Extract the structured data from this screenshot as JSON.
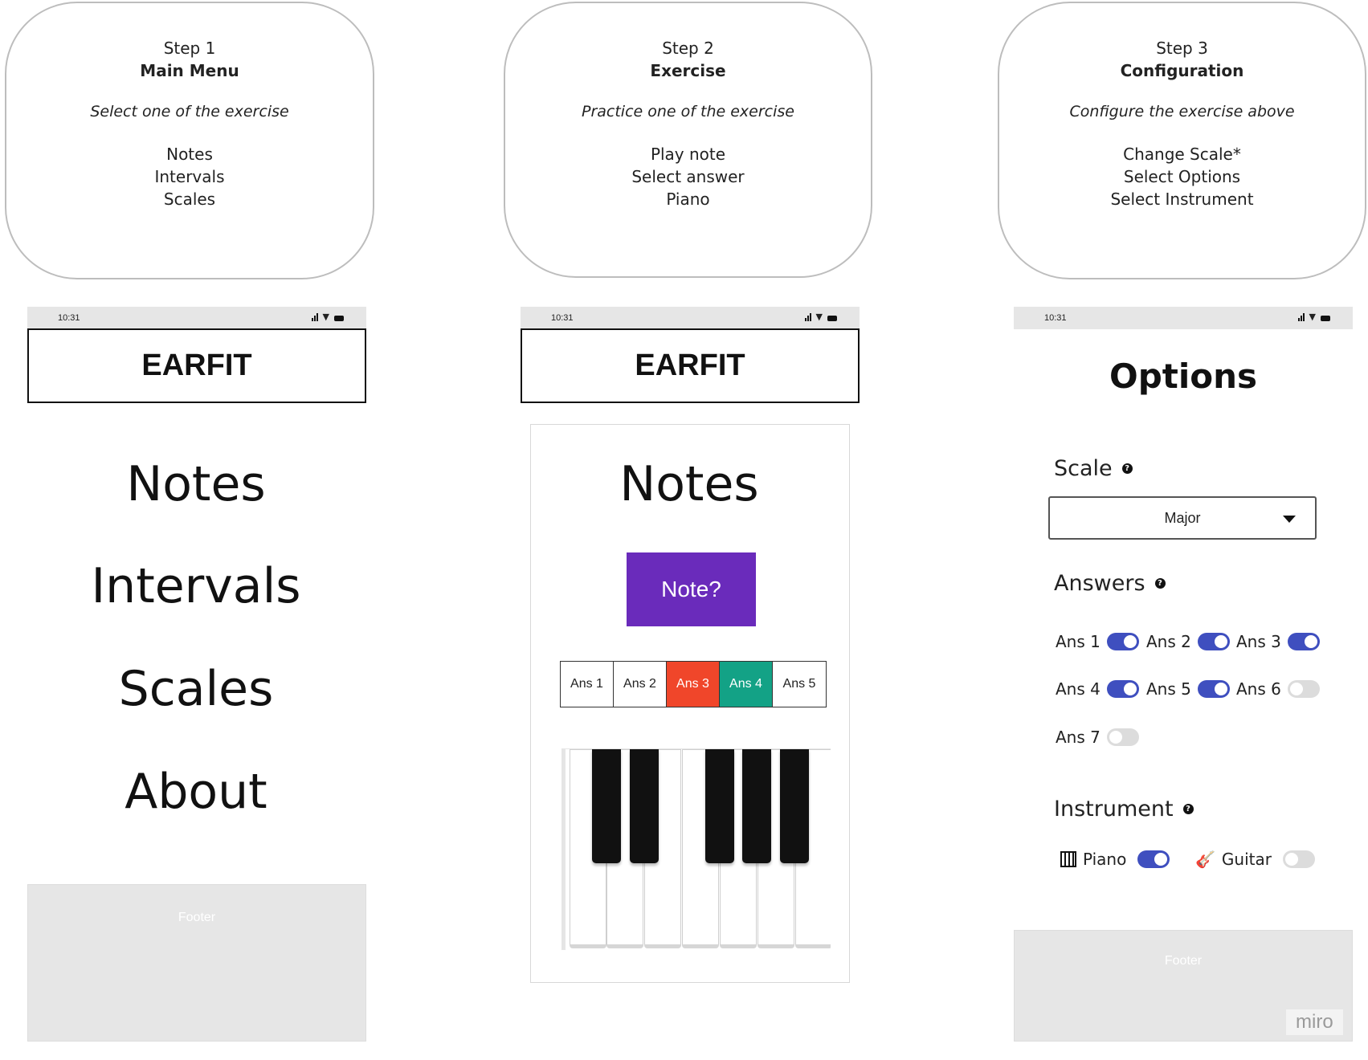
{
  "steps": [
    {
      "num": "Step 1",
      "title": "Main Menu",
      "subtitle": "Select one of the exercise",
      "items": [
        "Notes",
        "Intervals",
        "Scales"
      ]
    },
    {
      "num": "Step 2",
      "title": "Exercise",
      "subtitle": "Practice one of the exercise",
      "items": [
        "Play note",
        "Select answer",
        "Piano"
      ]
    },
    {
      "num": "Step 3",
      "title": "Configuration",
      "subtitle": "Configure the exercise above",
      "items": [
        "Change Scale*",
        "Select Options",
        "Select Instrument"
      ]
    }
  ],
  "status": {
    "time": "10:31"
  },
  "app_title": "EARFIT",
  "main_menu": {
    "items": [
      "Notes",
      "Intervals",
      "Scales",
      "About"
    ],
    "footer": "Footer"
  },
  "exercise": {
    "title": "Notes",
    "note_button": "Note?",
    "answers": [
      {
        "label": "Ans 1",
        "state": "default"
      },
      {
        "label": "Ans 2",
        "state": "default"
      },
      {
        "label": "Ans 3",
        "state": "wrong"
      },
      {
        "label": "Ans 4",
        "state": "correct"
      },
      {
        "label": "Ans 5",
        "state": "default"
      }
    ],
    "colors": {
      "button": "#6a2bbb",
      "wrong": "#f0462a",
      "correct": "#13a286"
    }
  },
  "options": {
    "title": "Options",
    "scale_label": "Scale",
    "scale_value": "Major",
    "answers_label": "Answers",
    "answers": [
      {
        "label": "Ans 1",
        "on": true
      },
      {
        "label": "Ans 2",
        "on": true
      },
      {
        "label": "Ans 3",
        "on": true
      },
      {
        "label": "Ans 4",
        "on": true
      },
      {
        "label": "Ans 5",
        "on": true
      },
      {
        "label": "Ans 6",
        "on": false
      },
      {
        "label": "Ans 7",
        "on": false
      }
    ],
    "instrument_label": "Instrument",
    "instruments": [
      {
        "label": "Piano",
        "icon": "piano-icon",
        "on": true
      },
      {
        "label": "Guitar",
        "icon": "guitar-icon",
        "on": false
      }
    ],
    "toggle_on_color": "#3f4fbf",
    "footer": "Footer"
  },
  "watermark": "miro"
}
